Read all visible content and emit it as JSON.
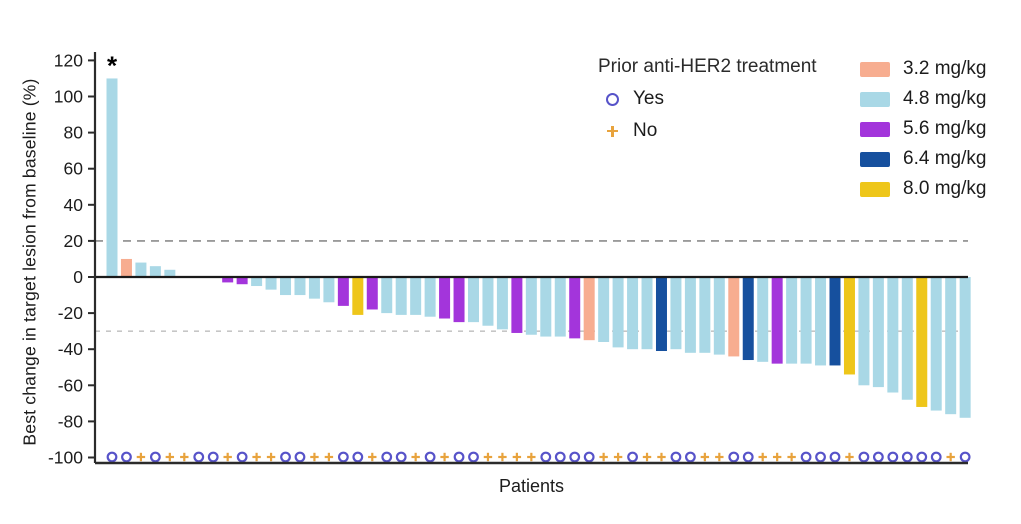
{
  "figure": {
    "y_axis_label": "Best change in target lesion from baseline (%)",
    "x_axis_label": "Patients",
    "annotation_star": "*"
  },
  "legend_treatment": {
    "title": "Prior anti-HER2 treatment",
    "items": [
      {
        "label": "Yes",
        "marker": "circle-icon"
      },
      {
        "label": "No",
        "marker": "plus-icon"
      }
    ]
  },
  "legend_dose": {
    "items": [
      {
        "label": "3.2 mg/kg",
        "color": "#F7AD90"
      },
      {
        "label": "4.8 mg/kg",
        "color": "#A9D8E6"
      },
      {
        "label": "5.6 mg/kg",
        "color": "#A335DB"
      },
      {
        "label": "6.4 mg/kg",
        "color": "#16509E"
      },
      {
        "label": "8.0 mg/kg",
        "color": "#EEC61A"
      }
    ]
  },
  "colors": {
    "marker_yes": "#5753C9",
    "marker_no": "#E8A33D",
    "ref_line_plus20": "#8C8C8C",
    "ref_line_minus30": "#C6C6C6",
    "axis": "#2B2B2B",
    "zero_line": "#1a1a1a"
  },
  "chart_data": {
    "type": "bar",
    "title": "",
    "xlabel": "Patients",
    "ylabel": "Best change in target lesion from baseline (%)",
    "ylim": [
      -100,
      120
    ],
    "yticks": [
      120,
      100,
      80,
      60,
      40,
      20,
      0,
      -20,
      -40,
      -60,
      -80,
      -100
    ],
    "reference_lines": {
      "upper": 20,
      "lower": -30
    },
    "legend_position": "top-right",
    "grid": false,
    "value_unit": "% best change in target lesion from baseline",
    "patients": [
      {
        "value": 110,
        "dose": "4.8 mg/kg",
        "prior_anti_her2": "Yes",
        "starred": true
      },
      {
        "value": 10,
        "dose": "3.2 mg/kg",
        "prior_anti_her2": "Yes"
      },
      {
        "value": 8,
        "dose": "4.8 mg/kg",
        "prior_anti_her2": "No"
      },
      {
        "value": 6,
        "dose": "4.8 mg/kg",
        "prior_anti_her2": "Yes"
      },
      {
        "value": 4,
        "dose": "4.8 mg/kg",
        "prior_anti_her2": "No"
      },
      {
        "value": 0,
        "dose": "4.8 mg/kg",
        "prior_anti_her2": "No"
      },
      {
        "value": 0,
        "dose": "4.8 mg/kg",
        "prior_anti_her2": "Yes"
      },
      {
        "value": 0,
        "dose": "4.8 mg/kg",
        "prior_anti_her2": "Yes"
      },
      {
        "value": -3,
        "dose": "5.6 mg/kg",
        "prior_anti_her2": "No"
      },
      {
        "value": -4,
        "dose": "5.6 mg/kg",
        "prior_anti_her2": "Yes"
      },
      {
        "value": -5,
        "dose": "4.8 mg/kg",
        "prior_anti_her2": "No"
      },
      {
        "value": -7,
        "dose": "4.8 mg/kg",
        "prior_anti_her2": "No"
      },
      {
        "value": -10,
        "dose": "4.8 mg/kg",
        "prior_anti_her2": "Yes"
      },
      {
        "value": -10,
        "dose": "4.8 mg/kg",
        "prior_anti_her2": "Yes"
      },
      {
        "value": -12,
        "dose": "4.8 mg/kg",
        "prior_anti_her2": "No"
      },
      {
        "value": -14,
        "dose": "4.8 mg/kg",
        "prior_anti_her2": "No"
      },
      {
        "value": -16,
        "dose": "5.6 mg/kg",
        "prior_anti_her2": "Yes"
      },
      {
        "value": -21,
        "dose": "8.0 mg/kg",
        "prior_anti_her2": "Yes"
      },
      {
        "value": -18,
        "dose": "5.6 mg/kg",
        "prior_anti_her2": "No"
      },
      {
        "value": -20,
        "dose": "4.8 mg/kg",
        "prior_anti_her2": "Yes"
      },
      {
        "value": -21,
        "dose": "4.8 mg/kg",
        "prior_anti_her2": "Yes"
      },
      {
        "value": -21,
        "dose": "4.8 mg/kg",
        "prior_anti_her2": "No"
      },
      {
        "value": -22,
        "dose": "4.8 mg/kg",
        "prior_anti_her2": "Yes"
      },
      {
        "value": -23,
        "dose": "5.6 mg/kg",
        "prior_anti_her2": "No"
      },
      {
        "value": -25,
        "dose": "5.6 mg/kg",
        "prior_anti_her2": "Yes"
      },
      {
        "value": -25,
        "dose": "4.8 mg/kg",
        "prior_anti_her2": "Yes"
      },
      {
        "value": -27,
        "dose": "4.8 mg/kg",
        "prior_anti_her2": "No"
      },
      {
        "value": -29,
        "dose": "4.8 mg/kg",
        "prior_anti_her2": "No"
      },
      {
        "value": -31,
        "dose": "5.6 mg/kg",
        "prior_anti_her2": "No"
      },
      {
        "value": -32,
        "dose": "4.8 mg/kg",
        "prior_anti_her2": "No"
      },
      {
        "value": -33,
        "dose": "4.8 mg/kg",
        "prior_anti_her2": "Yes"
      },
      {
        "value": -33,
        "dose": "4.8 mg/kg",
        "prior_anti_her2": "Yes"
      },
      {
        "value": -34,
        "dose": "5.6 mg/kg",
        "prior_anti_her2": "Yes"
      },
      {
        "value": -35,
        "dose": "3.2 mg/kg",
        "prior_anti_her2": "Yes"
      },
      {
        "value": -36,
        "dose": "4.8 mg/kg",
        "prior_anti_her2": "No"
      },
      {
        "value": -39,
        "dose": "4.8 mg/kg",
        "prior_anti_her2": "No"
      },
      {
        "value": -40,
        "dose": "4.8 mg/kg",
        "prior_anti_her2": "Yes"
      },
      {
        "value": -40,
        "dose": "4.8 mg/kg",
        "prior_anti_her2": "No"
      },
      {
        "value": -41,
        "dose": "6.4 mg/kg",
        "prior_anti_her2": "No"
      },
      {
        "value": -40,
        "dose": "4.8 mg/kg",
        "prior_anti_her2": "Yes"
      },
      {
        "value": -42,
        "dose": "4.8 mg/kg",
        "prior_anti_her2": "Yes"
      },
      {
        "value": -42,
        "dose": "4.8 mg/kg",
        "prior_anti_her2": "No"
      },
      {
        "value": -43,
        "dose": "4.8 mg/kg",
        "prior_anti_her2": "No"
      },
      {
        "value": -44,
        "dose": "3.2 mg/kg",
        "prior_anti_her2": "Yes"
      },
      {
        "value": -46,
        "dose": "6.4 mg/kg",
        "prior_anti_her2": "Yes"
      },
      {
        "value": -47,
        "dose": "4.8 mg/kg",
        "prior_anti_her2": "No"
      },
      {
        "value": -48,
        "dose": "5.6 mg/kg",
        "prior_anti_her2": "No"
      },
      {
        "value": -48,
        "dose": "4.8 mg/kg",
        "prior_anti_her2": "No"
      },
      {
        "value": -48,
        "dose": "4.8 mg/kg",
        "prior_anti_her2": "Yes"
      },
      {
        "value": -49,
        "dose": "4.8 mg/kg",
        "prior_anti_her2": "Yes"
      },
      {
        "value": -49,
        "dose": "6.4 mg/kg",
        "prior_anti_her2": "Yes"
      },
      {
        "value": -54,
        "dose": "8.0 mg/kg",
        "prior_anti_her2": "No"
      },
      {
        "value": -60,
        "dose": "4.8 mg/kg",
        "prior_anti_her2": "Yes"
      },
      {
        "value": -61,
        "dose": "4.8 mg/kg",
        "prior_anti_her2": "Yes"
      },
      {
        "value": -64,
        "dose": "4.8 mg/kg",
        "prior_anti_her2": "Yes"
      },
      {
        "value": -68,
        "dose": "4.8 mg/kg",
        "prior_anti_her2": "Yes"
      },
      {
        "value": -72,
        "dose": "8.0 mg/kg",
        "prior_anti_her2": "Yes"
      },
      {
        "value": -74,
        "dose": "4.8 mg/kg",
        "prior_anti_her2": "Yes"
      },
      {
        "value": -76,
        "dose": "4.8 mg/kg",
        "prior_anti_her2": "No"
      },
      {
        "value": -78,
        "dose": "4.8 mg/kg",
        "prior_anti_her2": "Yes"
      }
    ]
  }
}
